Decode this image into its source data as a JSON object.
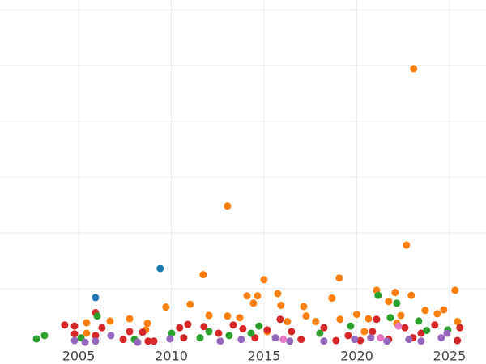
{
  "chart_data": {
    "type": "scatter",
    "xlim": [
      2000.76,
      2026.97
    ],
    "xticks": [
      2005,
      2010,
      2015,
      2020,
      2025
    ],
    "ylim": [
      -0.06,
      6.17
    ],
    "yticks": [
      1,
      2,
      3,
      4,
      5,
      6
    ],
    "grid": true,
    "series": [
      {
        "color": "#1f77b4",
        "x": [
          2005.91,
          2009.4
        ],
        "values": [
          0.84,
          1.36
        ]
      },
      {
        "color": "#ff7f0e",
        "x": [
          2023.07,
          2013.03,
          2022.68,
          2011.72,
          2015.0,
          2019.06,
          2021.07,
          2025.3,
          2015.74,
          2014.08,
          2014.65,
          2011.02,
          2009.71,
          2018.66,
          2017.14,
          2022.07,
          2022.94,
          2021.72,
          2014.43,
          2015.91,
          2012.03,
          2013.03,
          2005.43,
          2006.7,
          2007.75,
          2008.71,
          2017.27,
          2020.0,
          2020.63,
          2023.69,
          2024.69,
          2024.34,
          2022.38,
          2013.69,
          2016.26,
          2017.79,
          2019.1,
          2005.43,
          2008.62,
          2022.16,
          2025.43,
          2015.17,
          2020.41
        ],
        "values": [
          4.94,
          2.48,
          1.78,
          1.25,
          1.16,
          1.19,
          0.97,
          0.97,
          0.91,
          0.87,
          0.87,
          0.72,
          0.67,
          0.83,
          0.68,
          0.93,
          0.88,
          0.77,
          0.74,
          0.7,
          0.52,
          0.51,
          0.39,
          0.42,
          0.46,
          0.38,
          0.51,
          0.54,
          0.46,
          0.61,
          0.62,
          0.55,
          0.52,
          0.48,
          0.41,
          0.41,
          0.45,
          0.2,
          0.26,
          0.38,
          0.41,
          0.23,
          0.23
        ]
      },
      {
        "color": "#d62728",
        "x": [
          2005.91,
          2004.25,
          2004.78,
          2006.26,
          2007.75,
          2008.45,
          2007.4,
          2008.75,
          2009.06,
          2010.89,
          2010.45,
          2011.76,
          2013.34,
          2013.86,
          2015.17,
          2016.48,
          2018.23,
          2019.54,
          2020.85,
          2022.6,
          2023.47,
          2024.21,
          2025.56,
          2005.91,
          2004.78,
          2012.55,
          2014.51,
          2017.0,
          2018.88,
          2020.19,
          2021.72,
          2023.03,
          2025.43,
          2015.87,
          2021.07,
          2010.67
        ],
        "values": [
          0.57,
          0.35,
          0.33,
          0.3,
          0.23,
          0.22,
          0.09,
          0.06,
          0.06,
          0.36,
          0.3,
          0.32,
          0.35,
          0.28,
          0.26,
          0.23,
          0.3,
          0.16,
          0.23,
          0.3,
          0.2,
          0.35,
          0.3,
          0.16,
          0.19,
          0.2,
          0.12,
          0.09,
          0.07,
          0.07,
          0.09,
          0.12,
          0.07,
          0.45,
          0.45,
          0.12
        ]
      },
      {
        "color": "#2ca02c",
        "x": [
          2002.73,
          2003.16,
          2006.0,
          2021.15,
          2022.16,
          2010.02,
          2011.55,
          2012.03,
          2013.12,
          2014.73,
          2018.01,
          2019.67,
          2021.81,
          2023.34,
          2023.77,
          2024.91,
          2008.01,
          2014.3,
          2005.13
        ],
        "values": [
          0.1,
          0.16,
          0.51,
          0.88,
          0.74,
          0.2,
          0.12,
          0.23,
          0.16,
          0.33,
          0.2,
          0.33,
          0.48,
          0.42,
          0.25,
          0.26,
          0.09,
          0.2,
          0.12
        ]
      },
      {
        "color": "#9467bd",
        "x": [
          2006.74,
          2004.78,
          2005.35,
          2008.18,
          2009.93,
          2012.64,
          2013.77,
          2015.61,
          2016.39,
          2018.23,
          2019.89,
          2020.76,
          2021.63,
          2022.81,
          2023.47,
          2024.56,
          2024.87,
          2005.91
        ],
        "values": [
          0.16,
          0.07,
          0.04,
          0.04,
          0.1,
          0.06,
          0.09,
          0.12,
          0.06,
          0.06,
          0.09,
          0.12,
          0.06,
          0.09,
          0.06,
          0.12,
          0.2,
          0.06
        ]
      },
      {
        "color": "#e377c2",
        "x": [
          2022.25,
          2021.28,
          2016.04
        ],
        "values": [
          0.33,
          0.12,
          0.09
        ]
      }
    ]
  }
}
